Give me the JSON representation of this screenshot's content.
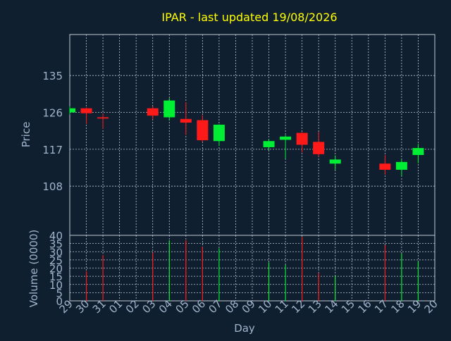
{
  "chart_data": [
    {
      "type": "candlestick",
      "title": "IPAR - last updated 19/08/2026",
      "ylabel": "Price",
      "xlabel": "",
      "ylim": [
        96,
        145
      ],
      "yticks": [
        108,
        117,
        126,
        135
      ],
      "grid": true,
      "x_labels": [
        "29",
        "30",
        "31",
        "01",
        "02",
        "03",
        "04",
        "05",
        "06",
        "07",
        "08",
        "09",
        "10",
        "11",
        "12",
        "13",
        "14",
        "15",
        "16",
        "17",
        "18",
        "19",
        "20"
      ],
      "candles": [
        {
          "day": "29",
          "open": 126.0,
          "high": 127.5,
          "low": 125.5,
          "close": 127.0
        },
        {
          "day": "30",
          "open": 127.0,
          "high": 127.2,
          "low": 123.2,
          "close": 125.8
        },
        {
          "day": "31",
          "open": 124.8,
          "high": 125.7,
          "low": 122.0,
          "close": 124.5
        },
        {
          "day": "03",
          "open": 127.0,
          "high": 127.5,
          "low": 124.3,
          "close": 125.2
        },
        {
          "day": "04",
          "open": 124.8,
          "high": 129.5,
          "low": 124.0,
          "close": 128.9
        },
        {
          "day": "05",
          "open": 124.4,
          "high": 128.5,
          "low": 120.5,
          "close": 123.5
        },
        {
          "day": "06",
          "open": 124.1,
          "high": 125.3,
          "low": 118.8,
          "close": 119.2
        },
        {
          "day": "07",
          "open": 119.0,
          "high": 123.1,
          "low": 117.8,
          "close": 123.0
        },
        {
          "day": "10",
          "open": 117.5,
          "high": 119.5,
          "low": 116.8,
          "close": 119.0
        },
        {
          "day": "11",
          "open": 119.3,
          "high": 120.5,
          "low": 114.7,
          "close": 120.1
        },
        {
          "day": "12",
          "open": 121.0,
          "high": 121.2,
          "low": 116.2,
          "close": 118.1
        },
        {
          "day": "13",
          "open": 118.8,
          "high": 121.3,
          "low": 115.2,
          "close": 115.8
        },
        {
          "day": "14",
          "open": 113.5,
          "high": 115.5,
          "low": 112.0,
          "close": 114.5
        },
        {
          "day": "17",
          "open": 113.5,
          "high": 115.6,
          "low": 110.8,
          "close": 112.0
        },
        {
          "day": "18",
          "open": 112.0,
          "high": 114.5,
          "low": 110.5,
          "close": 113.9
        },
        {
          "day": "19",
          "open": 115.6,
          "high": 118.3,
          "low": 113.6,
          "close": 117.3
        }
      ],
      "colors": {
        "up": "#00ee33",
        "down": "#ff1a1a",
        "grid": "#c0c8d0",
        "text": "#a0b4cc",
        "title": "#ffff00"
      }
    },
    {
      "type": "bar",
      "ylabel": "Volume (0000)",
      "xlabel": "Day",
      "ylim": [
        0,
        40
      ],
      "yticks": [
        0,
        5,
        10,
        15,
        20,
        25,
        30,
        35,
        40
      ],
      "x_labels": [
        "29",
        "30",
        "31",
        "01",
        "02",
        "03",
        "04",
        "05",
        "06",
        "07",
        "08",
        "09",
        "10",
        "11",
        "12",
        "13",
        "14",
        "15",
        "16",
        "17",
        "18",
        "19",
        "20"
      ],
      "bars": [
        {
          "day": "30",
          "value": 18.0,
          "direction": "down"
        },
        {
          "day": "31",
          "value": 28.0,
          "direction": "down"
        },
        {
          "day": "03",
          "value": 29.5,
          "direction": "down"
        },
        {
          "day": "04",
          "value": 37.0,
          "direction": "up"
        },
        {
          "day": "05",
          "value": 37.0,
          "direction": "down"
        },
        {
          "day": "06",
          "value": 33.0,
          "direction": "down"
        },
        {
          "day": "07",
          "value": 32.0,
          "direction": "up"
        },
        {
          "day": "10",
          "value": 23.5,
          "direction": "up"
        },
        {
          "day": "11",
          "value": 22.0,
          "direction": "up"
        },
        {
          "day": "12",
          "value": 39.0,
          "direction": "down"
        },
        {
          "day": "13",
          "value": 17.0,
          "direction": "down"
        },
        {
          "day": "14",
          "value": 15.5,
          "direction": "up"
        },
        {
          "day": "17",
          "value": 34.0,
          "direction": "down"
        },
        {
          "day": "18",
          "value": 29.0,
          "direction": "up"
        },
        {
          "day": "19",
          "value": 24.0,
          "direction": "up"
        }
      ]
    }
  ]
}
